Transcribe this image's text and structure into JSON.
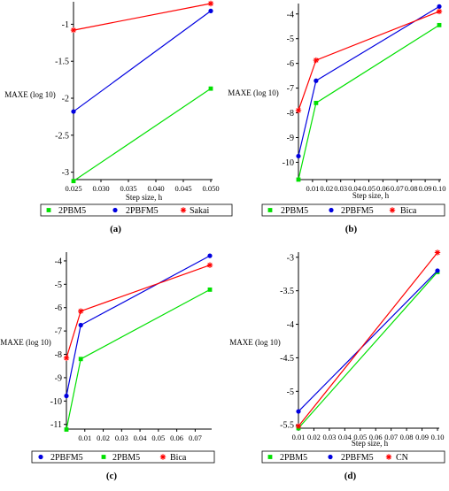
{
  "figure": {
    "panels": [
      {
        "id": "panel-a",
        "caption": "(a)",
        "chart_data": {
          "type": "line",
          "xlabel": "Step size, h",
          "ylabel": "MAXE (log 10)",
          "xlim": [
            0.025,
            0.05
          ],
          "ylim": [
            -3.1,
            -0.72
          ],
          "xticks": [
            0.025,
            0.03,
            0.035,
            0.04,
            0.045,
            0.05
          ],
          "xtick_labels": [
            "0.025",
            "0.030",
            "0.035",
            "0.040",
            "0.045",
            "0.050"
          ],
          "yticks": [
            -3,
            -2.5,
            -2,
            -1.5,
            -1
          ],
          "ytick_labels": [
            "-3",
            "-2.5",
            "-2",
            "-1.5",
            "-1"
          ],
          "series": [
            {
              "name": "2PBM5",
              "color": "#00e000",
              "marker": "square",
              "x": [
                0.025,
                0.05
              ],
              "y": [
                -3.12,
                -1.87
              ]
            },
            {
              "name": "2PBFM5",
              "color": "#0000e0",
              "marker": "circle",
              "x": [
                0.025,
                0.05
              ],
              "y": [
                -2.18,
                -0.82
              ]
            },
            {
              "name": "Sakai",
              "color": "#ff0000",
              "marker": "star",
              "x": [
                0.025,
                0.05
              ],
              "y": [
                -1.08,
                -0.72
              ]
            }
          ]
        }
      },
      {
        "id": "panel-b",
        "caption": "(b)",
        "chart_data": {
          "type": "line",
          "xlabel": "Step size, h",
          "ylabel": "MAXE (log 10)",
          "xlim": [
            0.0,
            0.1
          ],
          "ylim": [
            -10.7,
            -3.65
          ],
          "xticks": [
            0.01,
            0.02,
            0.03,
            0.04,
            0.05,
            0.06,
            0.07,
            0.08,
            0.09,
            0.1
          ],
          "xtick_labels": [
            "0.01",
            "0.02",
            "0.03",
            "0.04",
            "0.05",
            "0.06",
            "0.07",
            "0.08",
            "0.09",
            "0.10"
          ],
          "yticks": [
            -10,
            -9,
            -8,
            -7,
            -6,
            -5,
            -4
          ],
          "ytick_labels": [
            "-10",
            "-9",
            "-8",
            "-7",
            "-6",
            "-5",
            "-4"
          ],
          "series": [
            {
              "name": "2PBM5",
              "color": "#00e000",
              "marker": "square",
              "x": [
                0.0,
                0.0125,
                0.1
              ],
              "y": [
                -10.7,
                -7.6,
                -4.45
              ]
            },
            {
              "name": "2PBFM5",
              "color": "#0000e0",
              "marker": "circle",
              "x": [
                0.0,
                0.0125,
                0.1
              ],
              "y": [
                -9.75,
                -6.7,
                -3.7
              ]
            },
            {
              "name": "Bica",
              "color": "#ff0000",
              "marker": "star",
              "x": [
                0.0,
                0.0125,
                0.1
              ],
              "y": [
                -7.9,
                -5.87,
                -3.9
              ]
            }
          ]
        }
      },
      {
        "id": "panel-c",
        "caption": "(c)",
        "chart_data": {
          "type": "line",
          "xlabel": "",
          "ylabel": "MAXE (log 10)",
          "xlim": [
            0.0,
            0.078
          ],
          "ylim": [
            -11.2,
            -3.7
          ],
          "xticks": [
            0.01,
            0.02,
            0.03,
            0.04,
            0.05,
            0.06,
            0.07
          ],
          "xtick_labels": [
            "0.01",
            "0.02",
            "0.03",
            "0.04",
            "0.05",
            "0.06",
            "0.07"
          ],
          "yticks": [
            -11,
            -10,
            -9,
            -8,
            -7,
            -6,
            -5,
            -4
          ],
          "ytick_labels": [
            "-11",
            "-10",
            "-9",
            "-8",
            "-7",
            "-6",
            "-5",
            "-4"
          ],
          "series": [
            {
              "name": "2PBFM5",
              "color": "#0000e0",
              "marker": "circle",
              "x": [
                0.0,
                0.0078,
                0.078
              ],
              "y": [
                -9.78,
                -6.75,
                -3.78
              ]
            },
            {
              "name": "2PBM5",
              "color": "#00e000",
              "marker": "square",
              "x": [
                0.0,
                0.0078,
                0.078
              ],
              "y": [
                -11.22,
                -8.2,
                -5.23
              ]
            },
            {
              "name": "Bica",
              "color": "#ff0000",
              "marker": "star",
              "x": [
                0.0,
                0.0078,
                0.078
              ],
              "y": [
                -8.16,
                -6.15,
                -4.18
              ]
            }
          ]
        }
      },
      {
        "id": "panel-d",
        "caption": "(d)",
        "chart_data": {
          "type": "line",
          "xlabel": "Step size, h",
          "ylabel": "MAXE (log 10)",
          "xlim": [
            0.01,
            0.1
          ],
          "ylim": [
            -5.55,
            -2.95
          ],
          "xticks": [
            0.01,
            0.02,
            0.03,
            0.04,
            0.05,
            0.06,
            0.07,
            0.08,
            0.09,
            0.1
          ],
          "xtick_labels": [
            "0.01",
            "0.02",
            "0.03",
            "0.04",
            "0.05",
            "0.06",
            "0.07",
            "0.08",
            "0.09",
            "0.10"
          ],
          "yticks": [
            -5.5,
            -5,
            -4.5,
            -4,
            -3.5,
            -3
          ],
          "ytick_labels": [
            "-5.5",
            "-5",
            "-4.5",
            "-4",
            "-3.5",
            "-3"
          ],
          "series": [
            {
              "name": "2PBM5",
              "color": "#00e000",
              "marker": "square",
              "x": [
                0.01,
                0.1
              ],
              "y": [
                -5.55,
                -3.22
              ]
            },
            {
              "name": "2PBFM5",
              "color": "#0000e0",
              "marker": "circle",
              "x": [
                0.01,
                0.1
              ],
              "y": [
                -5.3,
                -3.2
              ]
            },
            {
              "name": "CN",
              "color": "#ff0000",
              "marker": "star",
              "x": [
                0.01,
                0.1
              ],
              "y": [
                -5.52,
                -2.93
              ]
            }
          ]
        }
      }
    ]
  }
}
